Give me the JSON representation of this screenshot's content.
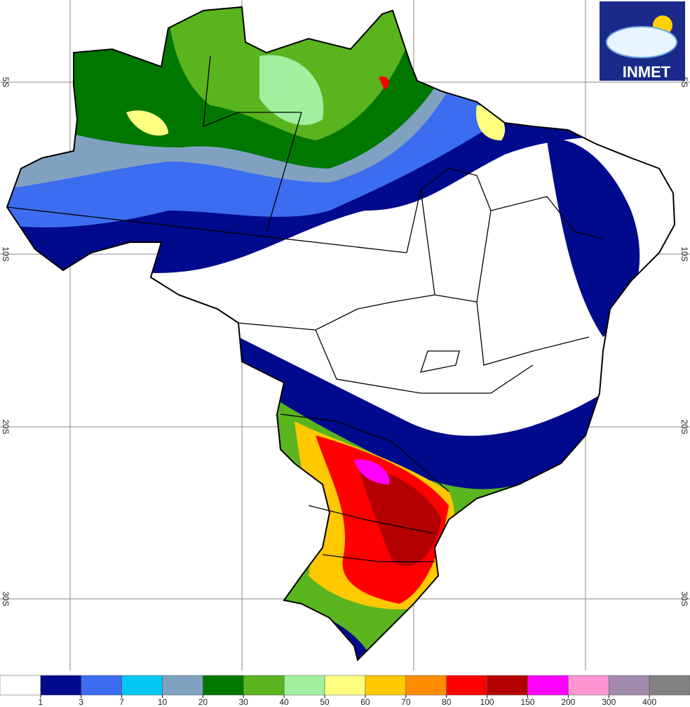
{
  "logo": {
    "text": "INMET"
  },
  "latitude_labels": [
    "5S",
    "10S",
    "20S",
    "30S"
  ],
  "legend": {
    "colors": [
      "#ffffff",
      "#000a8c",
      "#3c6cf0",
      "#00c8f0",
      "#80a2c0",
      "#007800",
      "#5ab41e",
      "#a0f0a0",
      "#ffff80",
      "#ffc800",
      "#ff8c00",
      "#ff0000",
      "#b40000",
      "#ff00ff",
      "#ff96d2",
      "#a08caa",
      "#828282"
    ],
    "thresholds": [
      1,
      3,
      7,
      10,
      20,
      30,
      40,
      50,
      60,
      70,
      80,
      100,
      150,
      200,
      300,
      400
    ]
  }
}
